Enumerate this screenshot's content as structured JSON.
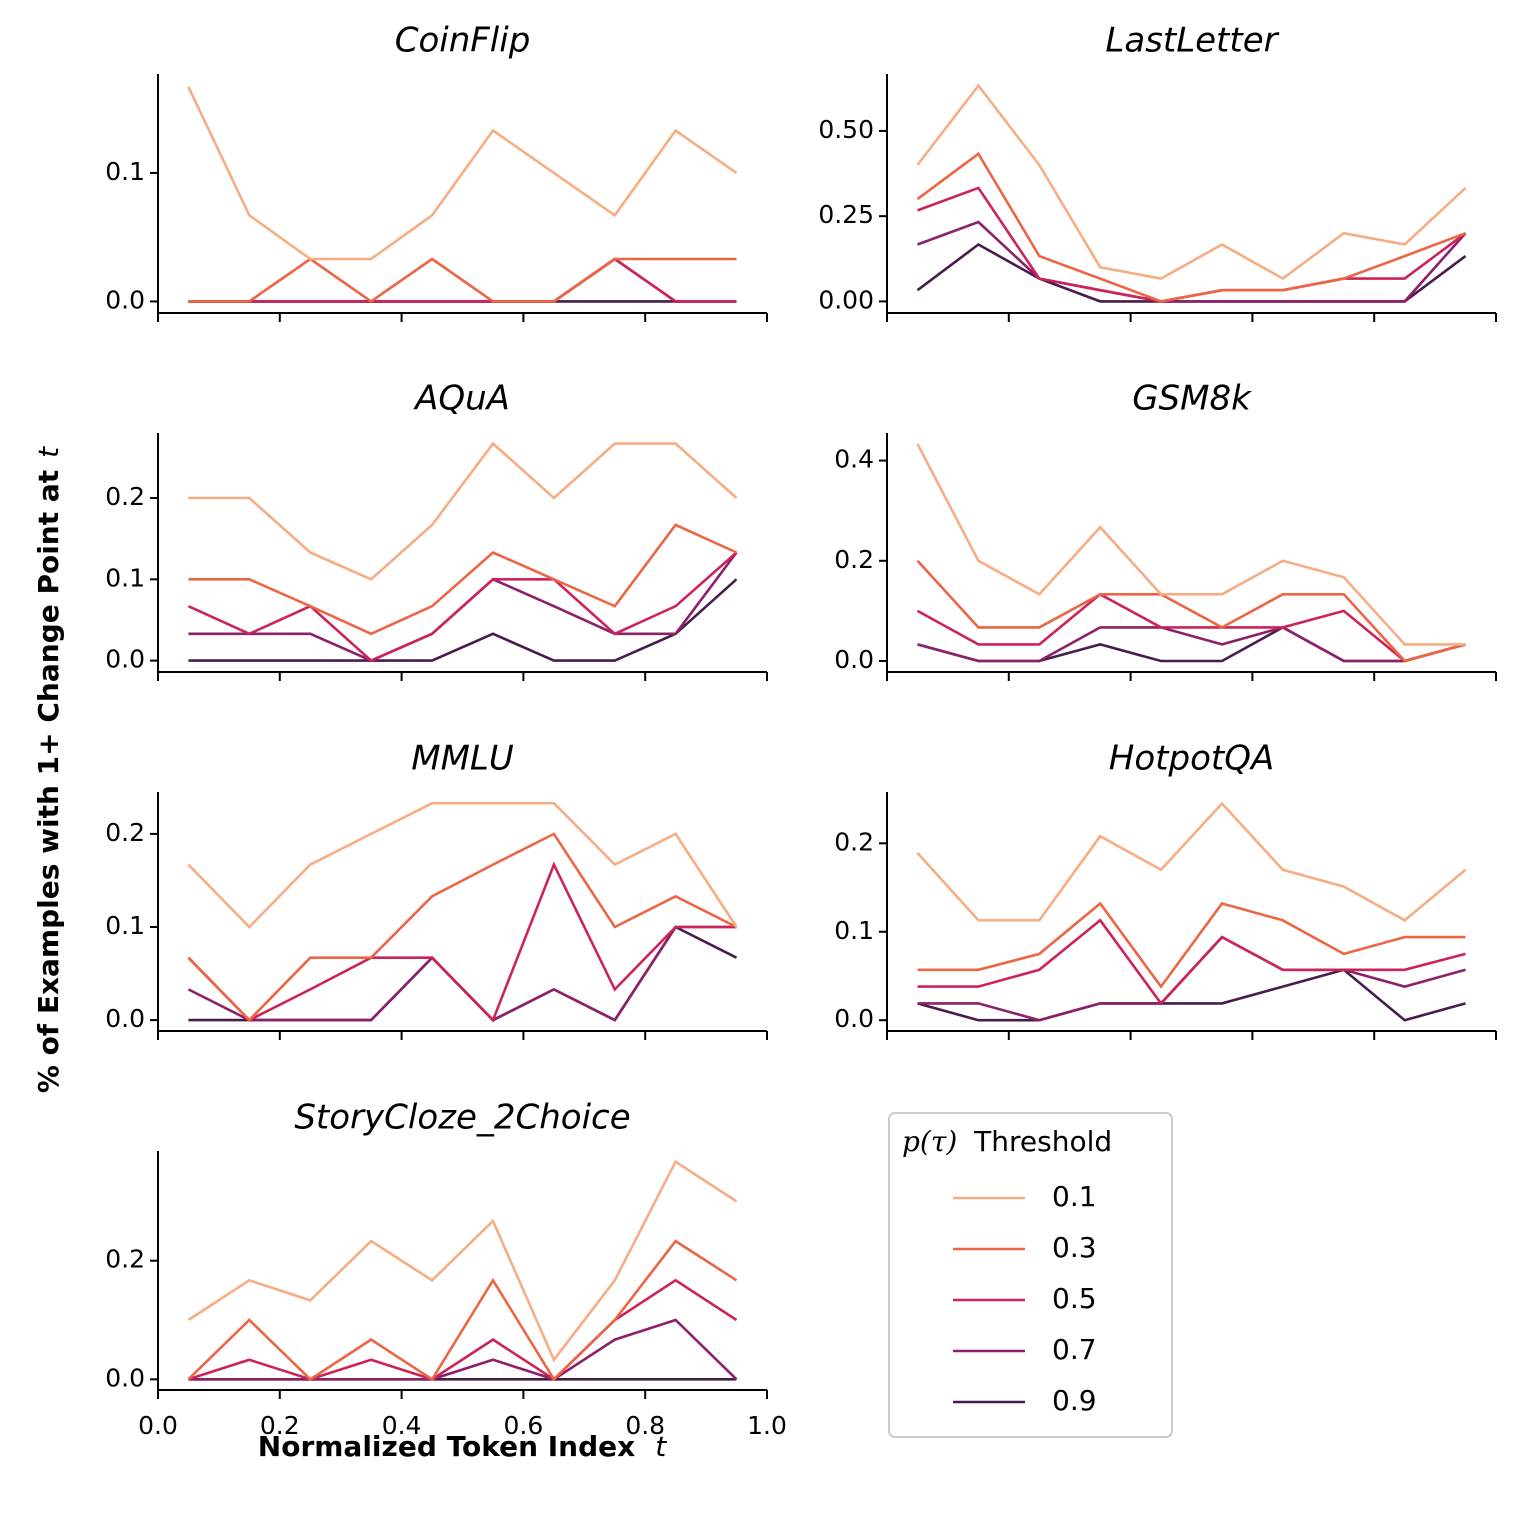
{
  "chart_data": {
    "type": "line",
    "xlabel_text": "Normalized Token Index",
    "xlabel_var": "t",
    "ylabel_text": "% of Examples with 1+ Change Point at",
    "ylabel_var": "t",
    "x": [
      0.05,
      0.15,
      0.25,
      0.35,
      0.45,
      0.55,
      0.65,
      0.75,
      0.85,
      0.95
    ],
    "xlim": [
      0.0,
      1.0
    ],
    "xticks": [
      0.0,
      0.2,
      0.4,
      0.6,
      0.8,
      1.0
    ],
    "xtick_labels": [
      "0.0",
      "0.2",
      "0.4",
      "0.6",
      "0.8",
      "1.0"
    ],
    "legend": {
      "title_var": "p(τ)",
      "title_text": "Threshold",
      "placement": "lower-right",
      "entries": [
        {
          "label": "0.1",
          "color": "#f6ad83"
        },
        {
          "label": "0.3",
          "color": "#ec6545"
        },
        {
          "label": "0.5",
          "color": "#cc2459"
        },
        {
          "label": "0.7",
          "color": "#8c2169"
        },
        {
          "label": "0.9",
          "color": "#481c4c"
        }
      ]
    },
    "panels": [
      {
        "title": "CoinFlip",
        "ylim": [
          -0.009,
          0.177
        ],
        "yticks": [
          0.0,
          0.1
        ],
        "ytick_labels": [
          "0.0",
          "0.1"
        ],
        "series": [
          {
            "name": "0.1",
            "values": [
              0.167,
              0.067,
              0.033,
              0.033,
              0.067,
              0.133,
              0.1,
              0.067,
              0.133,
              0.1
            ]
          },
          {
            "name": "0.3",
            "values": [
              0.0,
              0.0,
              0.033,
              0.0,
              0.033,
              0.0,
              0.0,
              0.033,
              0.033,
              0.033
            ]
          },
          {
            "name": "0.5",
            "values": [
              0.0,
              0.0,
              0.0,
              0.0,
              0.0,
              0.0,
              0.0,
              0.033,
              0.0,
              0.0
            ]
          },
          {
            "name": "0.7",
            "values": [
              0.0,
              0.0,
              0.0,
              0.0,
              0.0,
              0.0,
              0.0,
              0.033,
              0.0,
              0.0
            ]
          },
          {
            "name": "0.9",
            "values": [
              0.0,
              0.0,
              0.0,
              0.0,
              0.0,
              0.0,
              0.0,
              0.0,
              0.0,
              0.0
            ]
          }
        ]
      },
      {
        "title": "LastLetter",
        "ylim": [
          -0.034,
          0.667
        ],
        "yticks": [
          0.0,
          0.25,
          0.5
        ],
        "ytick_labels": [
          "0.00",
          "0.25",
          "0.50"
        ],
        "series": [
          {
            "name": "0.1",
            "values": [
              0.4,
              0.633,
              0.4,
              0.1,
              0.067,
              0.167,
              0.067,
              0.2,
              0.167,
              0.333
            ]
          },
          {
            "name": "0.3",
            "values": [
              0.3,
              0.433,
              0.133,
              0.067,
              0.0,
              0.033,
              0.033,
              0.067,
              0.133,
              0.2
            ]
          },
          {
            "name": "0.5",
            "values": [
              0.267,
              0.333,
              0.067,
              0.033,
              0.0,
              0.033,
              0.033,
              0.067,
              0.067,
              0.2
            ]
          },
          {
            "name": "0.7",
            "values": [
              0.167,
              0.233,
              0.067,
              0.033,
              0.0,
              0.0,
              0.0,
              0.0,
              0.0,
              0.2
            ]
          },
          {
            "name": "0.9",
            "values": [
              0.033,
              0.167,
              0.067,
              0.0,
              0.0,
              0.0,
              0.0,
              0.0,
              0.0,
              0.133
            ]
          }
        ]
      },
      {
        "title": "AQuA",
        "ylim": [
          -0.014,
          0.28
        ],
        "yticks": [
          0.0,
          0.1,
          0.2
        ],
        "ytick_labels": [
          "0.0",
          "0.1",
          "0.2"
        ],
        "series": [
          {
            "name": "0.1",
            "values": [
              0.2,
              0.2,
              0.133,
              0.1,
              0.167,
              0.267,
              0.2,
              0.267,
              0.267,
              0.2
            ]
          },
          {
            "name": "0.3",
            "values": [
              0.1,
              0.1,
              0.067,
              0.033,
              0.067,
              0.133,
              0.1,
              0.067,
              0.167,
              0.133
            ]
          },
          {
            "name": "0.5",
            "values": [
              0.067,
              0.033,
              0.067,
              0.0,
              0.033,
              0.1,
              0.1,
              0.033,
              0.067,
              0.133
            ]
          },
          {
            "name": "0.7",
            "values": [
              0.033,
              0.033,
              0.033,
              0.0,
              0.033,
              0.1,
              0.067,
              0.033,
              0.033,
              0.133
            ]
          },
          {
            "name": "0.9",
            "values": [
              0.0,
              0.0,
              0.0,
              0.0,
              0.0,
              0.033,
              0.0,
              0.0,
              0.033,
              0.1
            ]
          }
        ]
      },
      {
        "title": "GSM8k",
        "ylim": [
          -0.022,
          0.455
        ],
        "yticks": [
          0.0,
          0.2,
          0.4
        ],
        "ytick_labels": [
          "0.0",
          "0.2",
          "0.4"
        ],
        "series": [
          {
            "name": "0.1",
            "values": [
              0.433,
              0.2,
              0.133,
              0.267,
              0.133,
              0.133,
              0.2,
              0.167,
              0.033,
              0.033
            ]
          },
          {
            "name": "0.3",
            "values": [
              0.2,
              0.067,
              0.067,
              0.133,
              0.133,
              0.067,
              0.133,
              0.133,
              0.0,
              0.033
            ]
          },
          {
            "name": "0.5",
            "values": [
              0.1,
              0.033,
              0.033,
              0.133,
              0.067,
              0.067,
              0.067,
              0.1,
              0.0,
              0.033
            ]
          },
          {
            "name": "0.7",
            "values": [
              0.033,
              0.0,
              0.0,
              0.067,
              0.067,
              0.033,
              0.067,
              0.0,
              0.0,
              0.033
            ]
          },
          {
            "name": "0.9",
            "values": [
              0.033,
              0.0,
              0.0,
              0.033,
              0.0,
              0.0,
              0.067,
              0.0,
              0.0,
              0.033
            ]
          }
        ]
      },
      {
        "title": "MMLU",
        "ylim": [
          -0.0117,
          0.245
        ],
        "yticks": [
          0.0,
          0.1,
          0.2
        ],
        "ytick_labels": [
          "0.0",
          "0.1",
          "0.2"
        ],
        "series": [
          {
            "name": "0.1",
            "values": [
              0.167,
              0.1,
              0.167,
              0.2,
              0.233,
              0.233,
              0.233,
              0.167,
              0.2,
              0.1
            ]
          },
          {
            "name": "0.3",
            "values": [
              0.067,
              0.0,
              0.067,
              0.067,
              0.133,
              0.167,
              0.2,
              0.1,
              0.133,
              0.1
            ]
          },
          {
            "name": "0.5",
            "values": [
              0.067,
              0.0,
              0.033,
              0.067,
              0.067,
              0.0,
              0.167,
              0.033,
              0.1,
              0.1
            ]
          },
          {
            "name": "0.7",
            "values": [
              0.033,
              0.0,
              0.0,
              0.0,
              0.067,
              0.0,
              0.033,
              0.0,
              0.1,
              0.1
            ]
          },
          {
            "name": "0.9",
            "values": [
              0.0,
              0.0,
              0.0,
              0.0,
              0.067,
              0.0,
              0.033,
              0.0,
              0.1,
              0.067
            ]
          }
        ]
      },
      {
        "title": "HotpotQA",
        "ylim": [
          -0.0122,
          0.258
        ],
        "yticks": [
          0.0,
          0.1,
          0.2
        ],
        "ytick_labels": [
          "0.0",
          "0.1",
          "0.2"
        ],
        "series": [
          {
            "name": "0.1",
            "values": [
              0.189,
              0.113,
              0.113,
              0.208,
              0.17,
              0.245,
              0.17,
              0.151,
              0.113,
              0.17
            ]
          },
          {
            "name": "0.3",
            "values": [
              0.057,
              0.057,
              0.075,
              0.132,
              0.038,
              0.132,
              0.113,
              0.075,
              0.094,
              0.094
            ]
          },
          {
            "name": "0.5",
            "values": [
              0.038,
              0.038,
              0.057,
              0.113,
              0.019,
              0.094,
              0.057,
              0.057,
              0.057,
              0.075
            ]
          },
          {
            "name": "0.7",
            "values": [
              0.019,
              0.019,
              0.0,
              0.019,
              0.019,
              0.094,
              0.057,
              0.057,
              0.038,
              0.057
            ]
          },
          {
            "name": "0.9",
            "values": [
              0.019,
              0.0,
              0.0,
              0.019,
              0.019,
              0.019,
              0.038,
              0.057,
              0.0,
              0.019
            ]
          }
        ]
      },
      {
        "title": "StoryCloze_2Choice",
        "ylim": [
          -0.018,
          0.385
        ],
        "yticks": [
          0.0,
          0.2
        ],
        "ytick_labels": [
          "0.0",
          "0.2"
        ],
        "series": [
          {
            "name": "0.1",
            "values": [
              0.1,
              0.167,
              0.133,
              0.233,
              0.167,
              0.267,
              0.033,
              0.167,
              0.367,
              0.3
            ]
          },
          {
            "name": "0.3",
            "values": [
              0.0,
              0.1,
              0.0,
              0.067,
              0.0,
              0.167,
              0.0,
              0.1,
              0.233,
              0.167
            ]
          },
          {
            "name": "0.5",
            "values": [
              0.0,
              0.033,
              0.0,
              0.033,
              0.0,
              0.067,
              0.0,
              0.1,
              0.167,
              0.1
            ]
          },
          {
            "name": "0.7",
            "values": [
              0.0,
              0.0,
              0.0,
              0.0,
              0.0,
              0.033,
              0.0,
              0.067,
              0.1,
              0.0
            ]
          },
          {
            "name": "0.9",
            "values": [
              0.0,
              0.0,
              0.0,
              0.0,
              0.0,
              0.0,
              0.0,
              0.0,
              0.0,
              0.0
            ]
          }
        ]
      }
    ]
  }
}
